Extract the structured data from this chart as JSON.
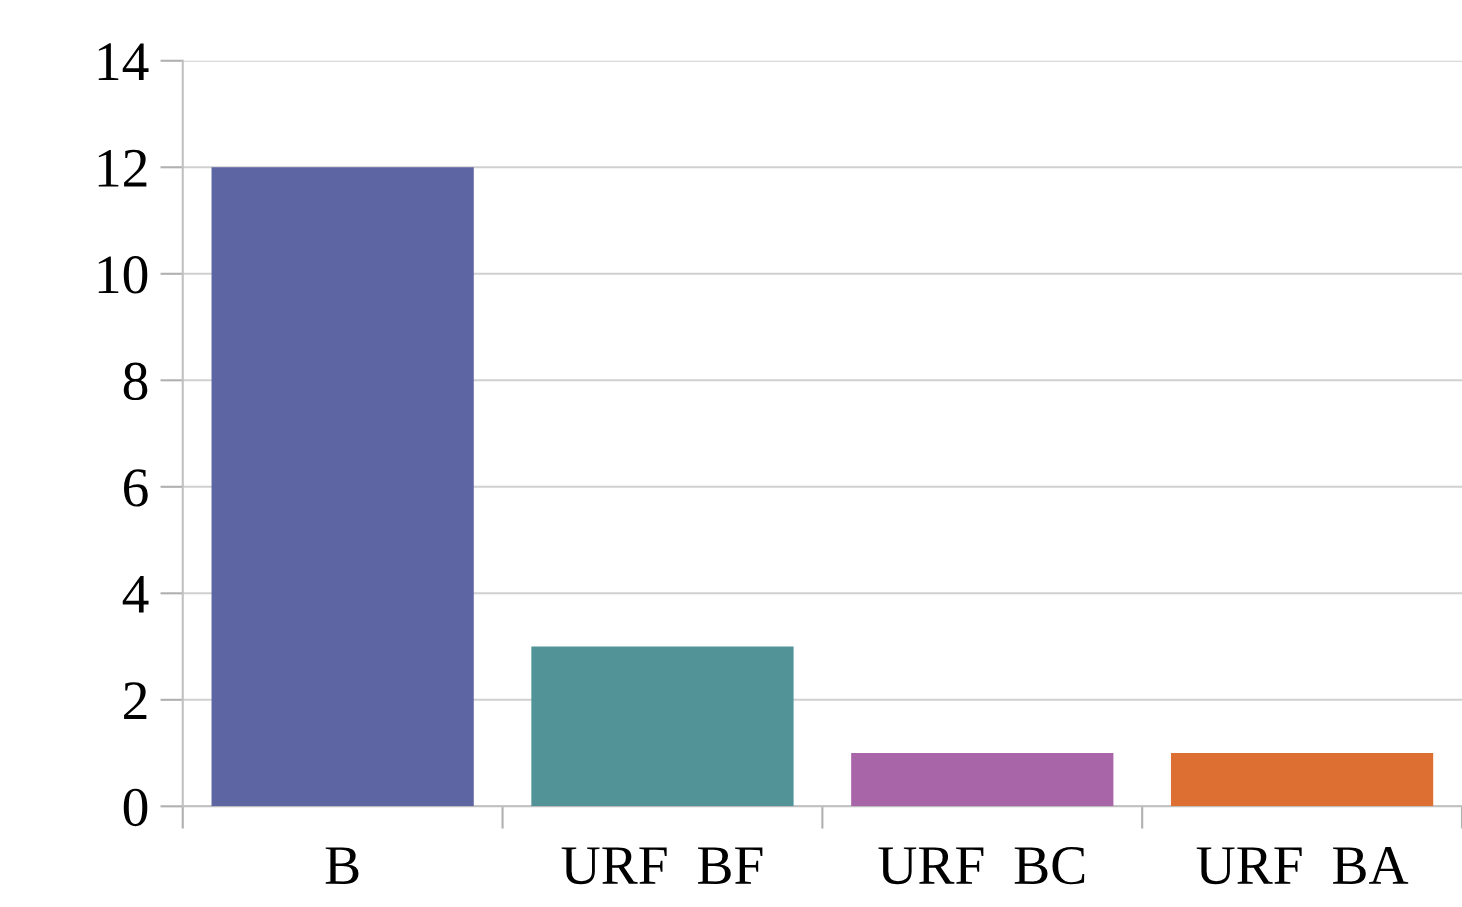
{
  "chart_data": {
    "type": "bar",
    "categories": [
      "B",
      "URF  BF",
      "URF  BC",
      "URF  BA"
    ],
    "values": [
      12,
      3,
      1,
      1
    ],
    "colors": [
      "#5e65a3",
      "#519396",
      "#a866a9",
      "#dd6f33"
    ],
    "ylim": [
      0,
      14
    ],
    "yticks": [
      0,
      2,
      4,
      6,
      8,
      10,
      12,
      14
    ],
    "grid": "y",
    "legend": false
  }
}
